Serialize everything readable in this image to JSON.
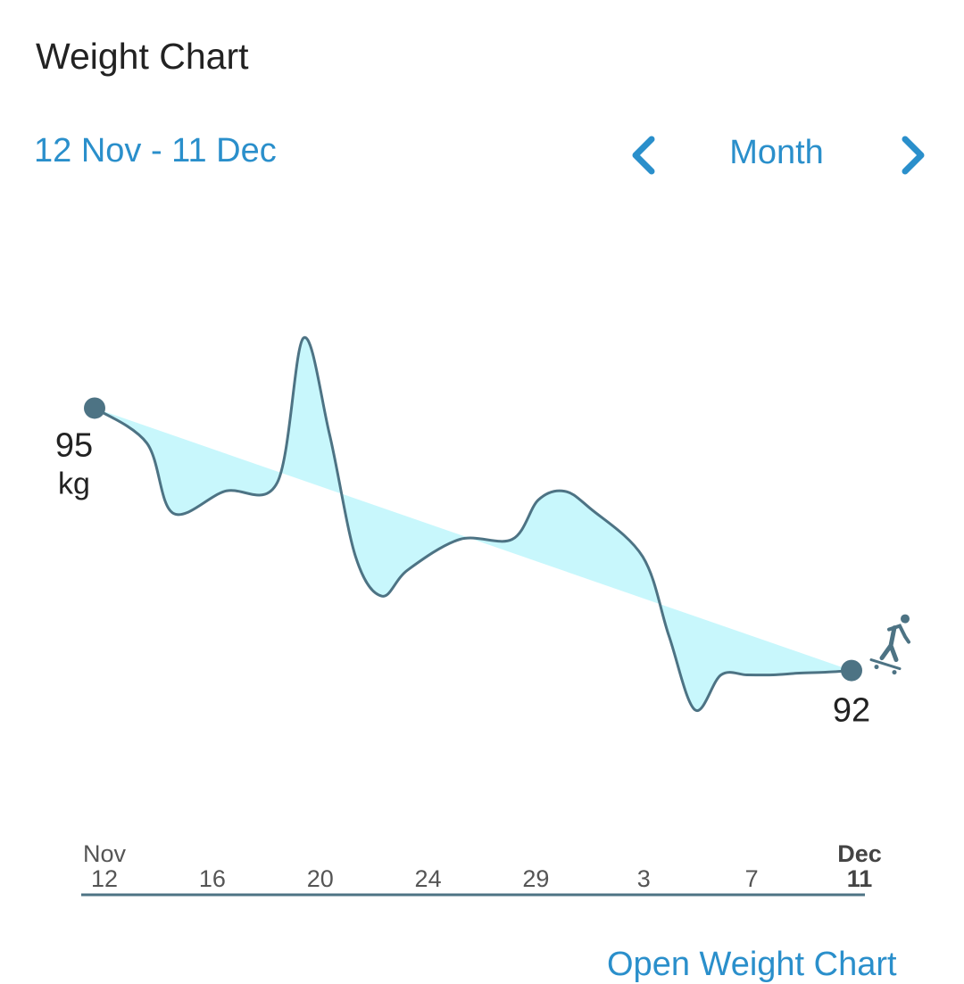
{
  "header": {
    "title": "Weight Chart"
  },
  "range": {
    "label": "12 Nov - 11 Dec"
  },
  "period": {
    "label": "Month",
    "prev_icon": "chevron-left-icon",
    "next_icon": "chevron-right-icon"
  },
  "colors": {
    "accent": "#2a8fcb",
    "line": "#4d7384",
    "fill": "#c8f7fc",
    "text": "#222222",
    "axis": "#4d7384"
  },
  "chart_data": {
    "type": "area",
    "x": [
      0,
      2,
      3,
      5,
      7,
      8,
      9,
      10,
      11,
      12,
      14,
      16,
      17,
      18,
      19,
      21,
      22,
      23,
      24,
      25,
      26,
      27,
      28,
      29
    ],
    "y": [
      95.0,
      94.6,
      93.8,
      94.05,
      94.15,
      95.8,
      94.7,
      93.3,
      92.85,
      93.15,
      93.5,
      93.5,
      93.95,
      94.05,
      93.85,
      93.3,
      92.4,
      91.55,
      91.95,
      91.95,
      91.95,
      91.97,
      91.98,
      92.0
    ],
    "start": {
      "value_label": "95",
      "unit": "kg"
    },
    "end": {
      "value_label": "92",
      "end_icon": "skateboarder-icon"
    },
    "ticks": [
      {
        "top": "Nov",
        "bottom": "12",
        "bold": false
      },
      {
        "top": "",
        "bottom": "16",
        "bold": false
      },
      {
        "top": "",
        "bottom": "20",
        "bold": false
      },
      {
        "top": "",
        "bottom": "24",
        "bold": false
      },
      {
        "top": "",
        "bottom": "29",
        "bold": false
      },
      {
        "top": "",
        "bottom": "3",
        "bold": false
      },
      {
        "top": "",
        "bottom": "7",
        "bold": false
      },
      {
        "top": "Dec",
        "bottom": "11",
        "bold": true
      }
    ],
    "ylim": [
      91.2,
      96.3
    ],
    "grid": false,
    "legend": "none"
  },
  "footer": {
    "link_label": "Open Weight Chart"
  }
}
